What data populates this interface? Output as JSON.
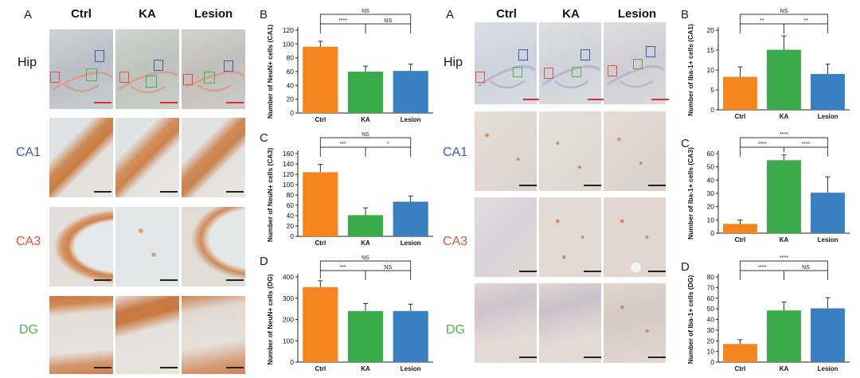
{
  "left_figure": {
    "panel_a_letter": "A",
    "column_headers": [
      "Ctrl",
      "KA",
      "Lesion"
    ],
    "row_labels": [
      {
        "text": "Hip",
        "color": "#111111"
      },
      {
        "text": "CA1",
        "color": "#3a5ea8"
      },
      {
        "text": "CA3",
        "color": "#e0503a"
      },
      {
        "text": "DG",
        "color": "#4caf50"
      }
    ],
    "stain": "NeuN"
  },
  "right_figure": {
    "panel_a_letter": "A",
    "column_headers": [
      "Ctrl",
      "KA",
      "Lesion"
    ],
    "row_labels": [
      {
        "text": "Hip",
        "color": "#111111"
      },
      {
        "text": "CA1",
        "color": "#3a5ea8"
      },
      {
        "text": "CA3",
        "color": "#e0503a"
      },
      {
        "text": "DG",
        "color": "#4caf50"
      }
    ],
    "stain": "Iba-1"
  },
  "colors": {
    "ctrl": "#f5861f",
    "ka": "#3aaa4a",
    "lesion": "#3a80c0",
    "scale_red": "#e0302a",
    "scale_black": "#222222"
  },
  "chart_data": [
    {
      "id": "neun-ca1",
      "panel": "B",
      "type": "bar",
      "categories": [
        "Ctrl",
        "KA",
        "Lesion"
      ],
      "values": [
        96,
        60,
        61
      ],
      "errors": [
        8,
        8,
        10
      ],
      "ylabel": "Number of NeuN+ cells (CA1)",
      "ylim": [
        0,
        120
      ],
      "yticks": [
        0,
        20,
        40,
        60,
        80,
        100,
        120
      ],
      "significance": [
        {
          "from": 0,
          "to": 1,
          "label": "****"
        },
        {
          "from": 1,
          "to": 2,
          "label": "NS"
        },
        {
          "from": 0,
          "to": 2,
          "label": "NS"
        }
      ]
    },
    {
      "id": "neun-ca3",
      "panel": "C",
      "type": "bar",
      "categories": [
        "Ctrl",
        "KA",
        "Lesion"
      ],
      "values": [
        124,
        41,
        67
      ],
      "errors": [
        15,
        14,
        11
      ],
      "ylabel": "Number of NeuN+ cells (CA3)",
      "ylim": [
        0,
        160
      ],
      "yticks": [
        0,
        20,
        40,
        60,
        80,
        100,
        120,
        140,
        160
      ],
      "significance": [
        {
          "from": 0,
          "to": 1,
          "label": "***"
        },
        {
          "from": 1,
          "to": 2,
          "label": "*"
        },
        {
          "from": 0,
          "to": 2,
          "label": "NS"
        }
      ]
    },
    {
      "id": "neun-dg",
      "panel": "D",
      "type": "bar",
      "categories": [
        "Ctrl",
        "KA",
        "Lesion"
      ],
      "values": [
        352,
        240,
        240
      ],
      "errors": [
        30,
        35,
        32
      ],
      "ylabel": "Number of NeuN+ cells (DG)",
      "ylim": [
        0,
        400
      ],
      "yticks": [
        0,
        100,
        200,
        300,
        400
      ],
      "significance": [
        {
          "from": 0,
          "to": 1,
          "label": "***"
        },
        {
          "from": 1,
          "to": 2,
          "label": "NS"
        },
        {
          "from": 0,
          "to": 2,
          "label": "NS"
        }
      ]
    },
    {
      "id": "iba1-ca1",
      "panel": "B",
      "type": "bar",
      "categories": [
        "Ctrl",
        "KA",
        "Lesion"
      ],
      "values": [
        8.3,
        15.1,
        9
      ],
      "errors": [
        2.5,
        3.5,
        2.5
      ],
      "ylabel": "Number of Iba-1+ cells (CA1)",
      "ylim": [
        0,
        20
      ],
      "yticks": [
        0,
        5,
        10,
        15,
        20
      ],
      "significance": [
        {
          "from": 0,
          "to": 1,
          "label": "**"
        },
        {
          "from": 1,
          "to": 2,
          "label": "**"
        },
        {
          "from": 0,
          "to": 2,
          "label": "NS"
        }
      ]
    },
    {
      "id": "iba1-ca3",
      "panel": "C",
      "type": "bar",
      "categories": [
        "Ctrl",
        "KA",
        "Lesion"
      ],
      "values": [
        7,
        55,
        30.5
      ],
      "errors": [
        3,
        4,
        12
      ],
      "ylabel": "Number of Iba-1+ cells (CA3)",
      "ylim": [
        0,
        60
      ],
      "yticks": [
        0,
        10,
        20,
        30,
        40,
        50,
        60
      ],
      "significance": [
        {
          "from": 0,
          "to": 1,
          "label": "****"
        },
        {
          "from": 1,
          "to": 2,
          "label": "****"
        },
        {
          "from": 0,
          "to": 2,
          "label": "****"
        }
      ]
    },
    {
      "id": "iba1-dg",
      "panel": "D",
      "type": "bar",
      "categories": [
        "Ctrl",
        "KA",
        "Lesion"
      ],
      "values": [
        17,
        48.5,
        50.5
      ],
      "errors": [
        4,
        8,
        10
      ],
      "ylabel": "Number of Iba-1+ cells (DG)",
      "ylim": [
        0,
        80
      ],
      "yticks": [
        0,
        10,
        20,
        30,
        40,
        50,
        60,
        70,
        80
      ],
      "significance": [
        {
          "from": 0,
          "to": 1,
          "label": "****"
        },
        {
          "from": 1,
          "to": 2,
          "label": "NS"
        },
        {
          "from": 0,
          "to": 2,
          "label": "****"
        }
      ]
    }
  ]
}
